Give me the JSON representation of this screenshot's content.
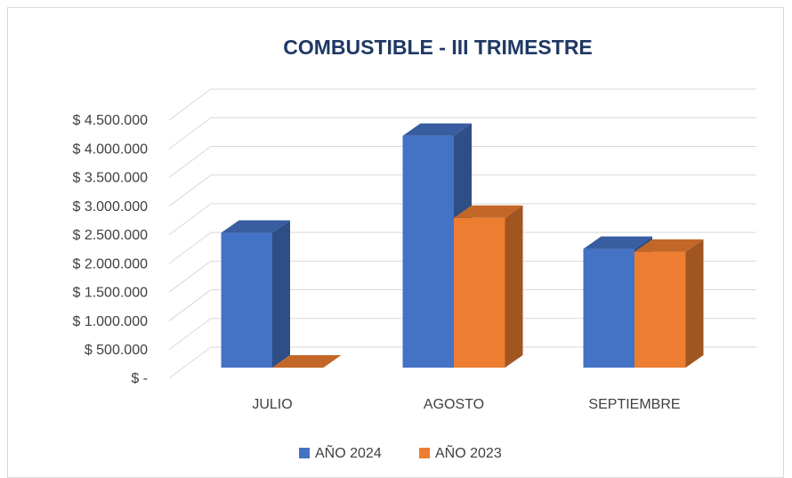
{
  "chart_data": {
    "type": "bar3d",
    "title": "COMBUSTIBLE - III TRIMESTRE",
    "categories": [
      "JULIO",
      "AGOSTO",
      "SEPTIEMBRE"
    ],
    "series": [
      {
        "name": "AÑO 2024",
        "color": "#4472c4",
        "values": [
          2350000,
          4040000,
          2070000
        ]
      },
      {
        "name": "AÑO 2023",
        "color": "#ed7d31",
        "values": [
          0,
          2610000,
          2020000
        ]
      }
    ],
    "ylim": [
      0,
      4500000
    ],
    "yticks": [
      {
        "value": 0,
        "label": "$ -"
      },
      {
        "value": 500000,
        "label": "$ 500.000"
      },
      {
        "value": 1000000,
        "label": "$ 1.000.000"
      },
      {
        "value": 1500000,
        "label": "$ 1.500.000"
      },
      {
        "value": 2000000,
        "label": "$ 2.000.000"
      },
      {
        "value": 2500000,
        "label": "$ 2.500.000"
      },
      {
        "value": 3000000,
        "label": "$ 3.000.000"
      },
      {
        "value": 3500000,
        "label": "$ 3.500.000"
      },
      {
        "value": 4000000,
        "label": "$ 4.000.000"
      },
      {
        "value": 4500000,
        "label": "$ 4.500.000"
      }
    ],
    "grid": true,
    "legend": "bottom"
  }
}
